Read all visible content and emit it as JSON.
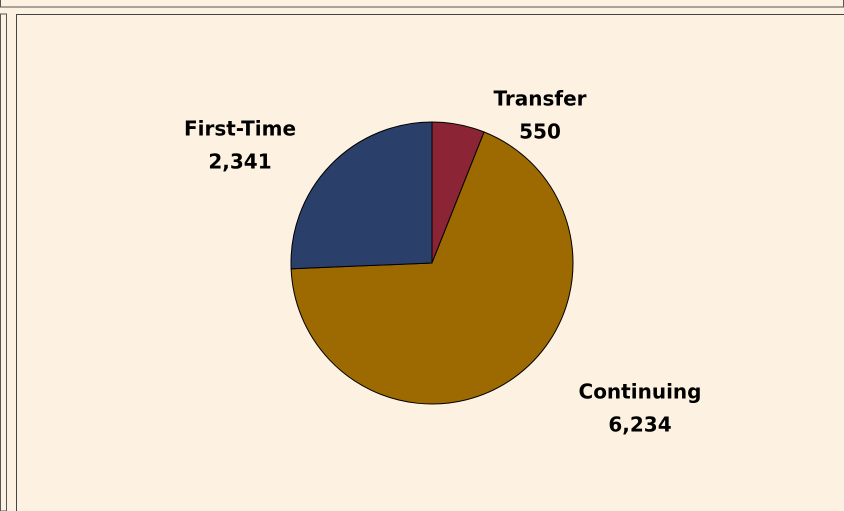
{
  "chart_data": {
    "type": "pie",
    "categories": [
      "Transfer",
      "Continuing",
      "First-Time"
    ],
    "values": [
      550,
      6234,
      2341
    ],
    "value_labels": [
      "550",
      "6,234",
      "2,341"
    ],
    "colors": [
      "#8b2535",
      "#9c6a00",
      "#2b3f6b"
    ]
  }
}
